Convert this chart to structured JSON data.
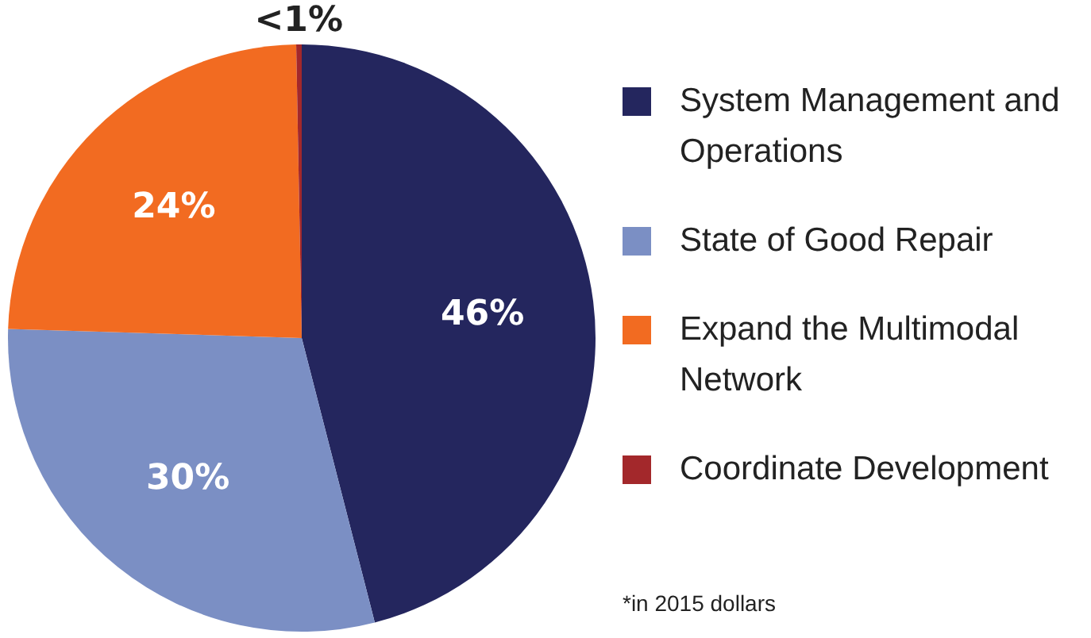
{
  "chart_data": {
    "type": "pie",
    "categories": [
      "System Management and Operations",
      "State of Good Repair",
      "Expand the Multimodal Network",
      "Coordinate Development"
    ],
    "values": [
      46,
      29.5,
      24.2,
      0.3
    ],
    "colors": [
      "#24265e",
      "#7b8fc4",
      "#f26b21",
      "#a3282b"
    ],
    "value_labels": [
      "46%",
      "30%",
      "24%",
      "<1%"
    ],
    "legend": "right",
    "annotations": [
      "*in 2015 dollars"
    ]
  }
}
